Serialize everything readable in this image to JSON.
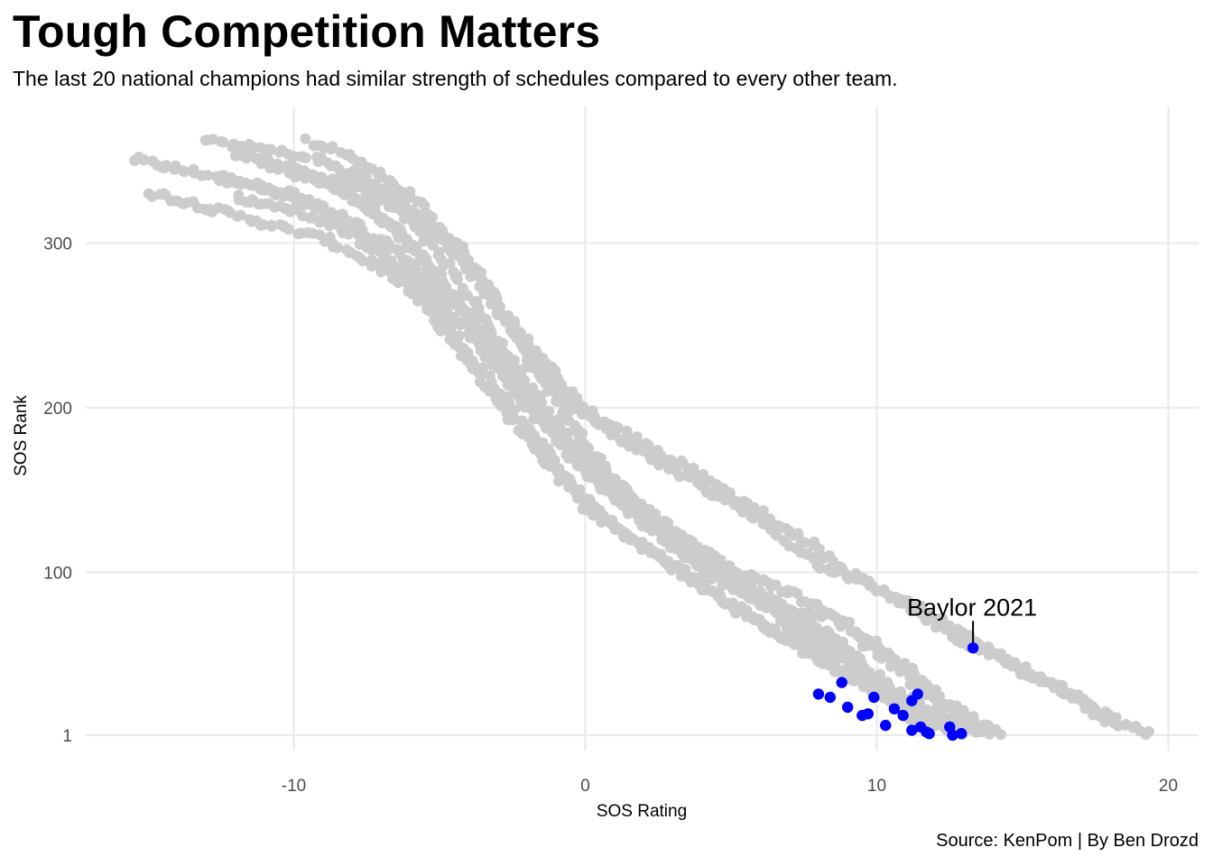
{
  "chart_data": {
    "type": "scatter",
    "title": "Tough Competition Matters",
    "subtitle": "The last 20 national champions had similar strength of schedules compared to every other team.",
    "caption": "Source: KenPom | By Ben Drozd",
    "xlabel": "SOS Rating",
    "ylabel": "SOS Rank",
    "xlim": [
      -17.5,
      21
    ],
    "ylim": [
      -13,
      380
    ],
    "x_ticks": [
      -10,
      0,
      10,
      20
    ],
    "x_tick_labels": [
      "-10",
      "0",
      "10",
      "20"
    ],
    "y_ticks": [
      1,
      100,
      200,
      300
    ],
    "y_tick_labels": [
      "1",
      "100",
      "200",
      "300"
    ],
    "grid": true,
    "y_reversed": false,
    "colors": {
      "all_teams": "#cccccc",
      "champions": "#0000ff",
      "grid": "#ebebeb"
    },
    "background_series": {
      "name": "All teams",
      "description_of_curves": [
        {
          "points": [
            [
              -15.5,
              351
            ],
            [
              -14,
              345
            ],
            [
              -12,
              338
            ],
            [
              -10,
              330
            ],
            [
              -8,
              310
            ],
            [
              -6,
              275
            ],
            [
              -4,
              228
            ],
            [
              -2,
              180
            ],
            [
              0,
              140
            ],
            [
              2,
              115
            ],
            [
              4,
              92
            ],
            [
              6,
              70
            ],
            [
              8,
              48
            ],
            [
              10,
              28
            ],
            [
              12,
              10
            ],
            [
              14.5,
              1
            ]
          ]
        },
        {
          "points": [
            [
              -15,
              331
            ],
            [
              -13,
              322
            ],
            [
              -11,
              312
            ],
            [
              -9,
              303
            ],
            [
              -7,
              285
            ],
            [
              -5,
              255
            ],
            [
              -3,
              210
            ],
            [
              -1,
              165
            ],
            [
              1,
              128
            ],
            [
              3,
              105
            ],
            [
              5,
              80
            ],
            [
              7,
              58
            ],
            [
              9,
              38
            ],
            [
              11,
              18
            ],
            [
              13,
              5
            ],
            [
              14,
              1
            ]
          ]
        },
        {
          "points": [
            [
              -13,
              362
            ],
            [
              -11,
              357
            ],
            [
              -9,
              350
            ],
            [
              -7,
              330
            ],
            [
              -5,
              295
            ],
            [
              -3,
              240
            ],
            [
              -1,
              190
            ],
            [
              1,
              148
            ],
            [
              3,
              120
            ],
            [
              5,
              95
            ],
            [
              7,
              75
            ],
            [
              8.5,
              60
            ],
            [
              10,
              35
            ],
            [
              11.5,
              12
            ],
            [
              13,
              1
            ]
          ]
        },
        {
          "points": [
            [
              -12,
              355
            ],
            [
              -10,
              345
            ],
            [
              -8,
              330
            ],
            [
              -6,
              300
            ],
            [
              -4,
              255
            ],
            [
              -2,
              205
            ],
            [
              0,
              160
            ],
            [
              2,
              130
            ],
            [
              4,
              102
            ],
            [
              6,
              82
            ],
            [
              7.5,
              65
            ],
            [
              9,
              45
            ],
            [
              10.5,
              22
            ],
            [
              12,
              3
            ]
          ]
        },
        {
          "points": [
            [
              -11,
              348
            ],
            [
              -9,
              338
            ],
            [
              -7,
              315
            ],
            [
              -5,
              280
            ],
            [
              -3,
              232
            ],
            [
              -1,
              186
            ],
            [
              1,
              150
            ],
            [
              3,
              118
            ],
            [
              5,
              96
            ],
            [
              7,
              76
            ],
            [
              8.5,
              72
            ],
            [
              10,
              52
            ],
            [
              11.5,
              30
            ],
            [
              13,
              10
            ],
            [
              14,
              1
            ]
          ]
        },
        {
          "points": [
            [
              -9.5,
              362
            ],
            [
              -8,
              352
            ],
            [
              -6,
              330
            ],
            [
              -4,
              290
            ],
            [
              -2,
              235
            ],
            [
              0,
              195
            ],
            [
              2,
              172
            ],
            [
              4,
              152
            ],
            [
              6,
              130
            ],
            [
              8,
              105
            ],
            [
              10,
              90
            ],
            [
              12,
              73
            ],
            [
              14,
              50
            ],
            [
              16,
              32
            ],
            [
              18,
              12
            ],
            [
              19.4,
              1
            ]
          ]
        },
        {
          "points": [
            [
              -12,
              328
            ],
            [
              -10,
              320
            ],
            [
              -8,
              305
            ],
            [
              -6,
              280
            ],
            [
              -4,
              245
            ],
            [
              -2,
              200
            ],
            [
              0,
              170
            ],
            [
              1,
              152
            ],
            [
              3,
              125
            ],
            [
              5,
              103
            ],
            [
              7,
              88
            ],
            [
              9,
              68
            ],
            [
              11,
              42
            ],
            [
              12.5,
              20
            ],
            [
              14,
              5
            ]
          ]
        },
        {
          "points": [
            [
              -10,
              342
            ],
            [
              -8,
              335
            ],
            [
              -6,
              318
            ],
            [
              -4,
              288
            ],
            [
              -2,
              240
            ],
            [
              0,
              198
            ],
            [
              2,
              178
            ],
            [
              4,
              158
            ],
            [
              6,
              136
            ],
            [
              7.5,
              120
            ],
            [
              9,
              100
            ],
            [
              11,
              80
            ],
            [
              13,
              58
            ],
            [
              15,
              40
            ],
            [
              17,
              22
            ],
            [
              18.4,
              3
            ]
          ]
        },
        {
          "points": [
            [
              -8,
              345
            ],
            [
              -6,
              322
            ],
            [
              -4,
              285
            ],
            [
              -2,
              232
            ],
            [
              0,
              178
            ],
            [
              2,
              138
            ],
            [
              4,
              110
            ],
            [
              6,
              88
            ],
            [
              8,
              65
            ],
            [
              9.5,
              40
            ],
            [
              11,
              15
            ],
            [
              12,
              3
            ]
          ]
        },
        {
          "points": [
            [
              -12.5,
              340
            ],
            [
              -10.5,
              330
            ],
            [
              -8.5,
              318
            ],
            [
              -6.5,
              295
            ],
            [
              -4.5,
              262
            ],
            [
              -2.5,
              218
            ],
            [
              -0.5,
              172
            ],
            [
              1.5,
              140
            ],
            [
              3.5,
              112
            ],
            [
              5.5,
              88
            ],
            [
              7.5,
              60
            ],
            [
              9,
              48
            ],
            [
              10.5,
              30
            ],
            [
              12,
              15
            ],
            [
              13.5,
              4
            ]
          ]
        }
      ]
    },
    "highlight_series": {
      "name": "National champions",
      "points": [
        [
          13.3,
          54
        ],
        [
          8.0,
          26
        ],
        [
          8.4,
          24
        ],
        [
          8.8,
          33
        ],
        [
          9.0,
          18
        ],
        [
          9.5,
          13
        ],
        [
          9.7,
          14
        ],
        [
          9.9,
          24
        ],
        [
          10.3,
          7
        ],
        [
          10.6,
          17
        ],
        [
          10.9,
          13
        ],
        [
          11.2,
          22
        ],
        [
          11.4,
          26
        ],
        [
          11.2,
          4
        ],
        [
          11.5,
          6
        ],
        [
          11.7,
          3
        ],
        [
          12.5,
          6
        ],
        [
          12.6,
          1
        ],
        [
          12.9,
          2
        ],
        [
          11.8,
          2
        ]
      ]
    },
    "annotations": [
      {
        "text": "Baylor 2021",
        "x": 13.3,
        "y": 54
      }
    ]
  }
}
